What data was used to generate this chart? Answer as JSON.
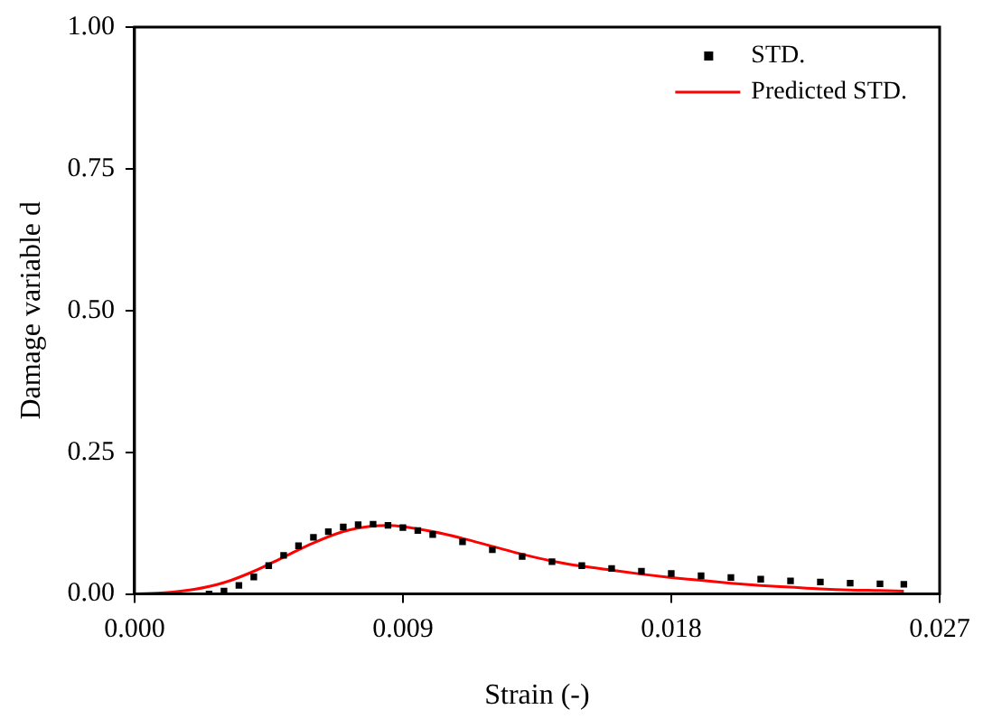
{
  "chart_data": {
    "type": "scatter",
    "xlabel": "Strain (-)",
    "ylabel": "Damage variable d",
    "xlim": [
      0,
      0.027
    ],
    "ylim": [
      0,
      1
    ],
    "xticks": [
      {
        "value": 0,
        "label": "0.000"
      },
      {
        "value": 0.009,
        "label": "0.009"
      },
      {
        "value": 0.018,
        "label": "0.018"
      },
      {
        "value": 0.027,
        "label": "0.027"
      }
    ],
    "yticks": [
      {
        "value": 0,
        "label": "0.00"
      },
      {
        "value": 0.25,
        "label": "0.25"
      },
      {
        "value": 0.5,
        "label": "0.50"
      },
      {
        "value": 0.75,
        "label": "0.75"
      },
      {
        "value": 1,
        "label": "1.00"
      }
    ],
    "grid": false,
    "legend": "top right",
    "marker": "square",
    "series": [
      {
        "name": "STD.",
        "color": "#000000",
        "x": [
          0.0025,
          0.003,
          0.0035,
          0.004,
          0.0045,
          0.005,
          0.0055,
          0.006,
          0.0065,
          0.007,
          0.0075,
          0.008,
          0.0085,
          0.009,
          0.0095,
          0.01,
          0.011,
          0.012,
          0.013,
          0.014,
          0.015,
          0.016,
          0.017,
          0.018,
          0.019,
          0.02,
          0.021,
          0.022,
          0.023,
          0.024,
          0.025,
          0.0258
        ],
        "values": [
          0,
          0.005,
          0.015,
          0.03,
          0.05,
          0.068,
          0.085,
          0.1,
          0.11,
          0.118,
          0.122,
          0.123,
          0.121,
          0.117,
          0.112,
          0.105,
          0.092,
          0.078,
          0.066,
          0.057,
          0.05,
          0.045,
          0.04,
          0.036,
          0.032,
          0.029,
          0.026,
          0.023,
          0.021,
          0.019,
          0.018,
          0.017
        ]
      },
      {
        "name": "Predicted STD.",
        "type": "line",
        "color": "#ff0000",
        "marker": "none",
        "x": [
          0,
          0.001,
          0.002,
          0.003,
          0.004,
          0.005,
          0.006,
          0.007,
          0.008,
          0.0085,
          0.009,
          0.01,
          0.011,
          0.012,
          0.013,
          0.014,
          0.015,
          0.016,
          0.017,
          0.018,
          0.019,
          0.02,
          0.021,
          0.022,
          0.023,
          0.024,
          0.025,
          0.0258
        ],
        "values": [
          0,
          0.002,
          0.008,
          0.02,
          0.04,
          0.065,
          0.09,
          0.11,
          0.12,
          0.121,
          0.119,
          0.11,
          0.098,
          0.084,
          0.07,
          0.058,
          0.049,
          0.042,
          0.035,
          0.029,
          0.024,
          0.019,
          0.015,
          0.012,
          0.009,
          0.007,
          0.006,
          0.005
        ]
      }
    ]
  }
}
